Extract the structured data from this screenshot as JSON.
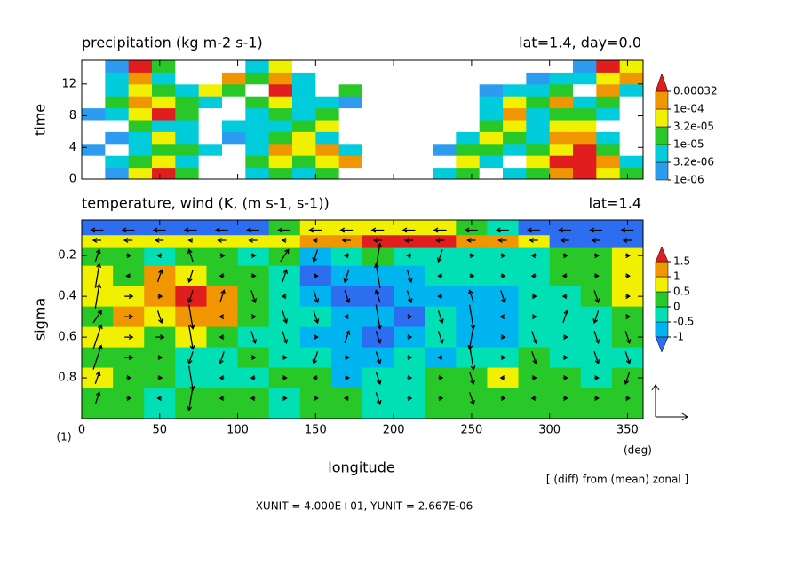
{
  "chart_data": [
    {
      "type": "contour",
      "title": "precipitation (kg m-2 s-1)",
      "subtitle": "lat=1.4, day=0.0",
      "ylabel": "time",
      "xlim": [
        0,
        360
      ],
      "xticks": [
        0,
        50,
        100,
        150,
        200,
        250,
        300,
        350
      ],
      "ylim": [
        0,
        15
      ],
      "yticks": [
        0,
        4,
        8,
        12
      ],
      "x": [
        7.5,
        22.5,
        37.5,
        52.5,
        67.5,
        82.5,
        97.5,
        112.5,
        127.5,
        142.5,
        157.5,
        172.5,
        187.5,
        202.5,
        217.5,
        232.5,
        247.5,
        262.5,
        277.5,
        292.5,
        307.5,
        322.5,
        337.5,
        352.5
      ],
      "y": [
        0.75,
        2.25,
        3.75,
        5.25,
        6.75,
        8.25,
        9.75,
        11.25,
        12.75,
        14.25
      ],
      "z": [
        [
          0,
          2e-06,
          5e-05,
          0.0005,
          2e-05,
          0,
          0,
          5e-06,
          2e-05,
          5e-06,
          2e-05,
          0,
          0,
          0,
          0,
          5e-06,
          2e-05,
          0,
          5e-06,
          2e-05,
          0.0002,
          0.0005,
          5e-05,
          2e-05
        ],
        [
          0,
          5e-06,
          2e-05,
          5e-05,
          5e-06,
          0,
          0,
          2e-05,
          5e-05,
          2e-05,
          5e-05,
          0.0002,
          0,
          0,
          0,
          0,
          5e-05,
          5e-06,
          0,
          5e-05,
          0.0005,
          0.0005,
          0.0002,
          5e-06
        ],
        [
          2e-06,
          0,
          5e-06,
          2e-05,
          2e-05,
          5e-06,
          0,
          5e-06,
          0.0002,
          5e-05,
          0.0002,
          5e-06,
          0,
          0,
          0,
          2e-06,
          2e-05,
          2e-05,
          5e-06,
          2e-05,
          5e-05,
          0.0005,
          2e-05,
          0
        ],
        [
          0,
          2e-06,
          5e-06,
          5e-05,
          5e-06,
          0,
          2e-06,
          5e-06,
          2e-05,
          5e-05,
          5e-06,
          0,
          0,
          0,
          0,
          0,
          5e-06,
          5e-05,
          2e-05,
          5e-06,
          0.0002,
          0.0002,
          5e-06,
          0
        ],
        [
          0,
          0,
          2e-05,
          5e-06,
          5e-06,
          0,
          5e-06,
          5e-06,
          5e-06,
          2e-05,
          5e-05,
          0,
          0,
          0,
          0,
          0,
          0,
          2e-05,
          5e-05,
          5e-06,
          5e-05,
          5e-05,
          0,
          0
        ],
        [
          2e-06,
          5e-06,
          5e-05,
          0.0005,
          2e-05,
          0,
          0,
          5e-06,
          2e-05,
          5e-06,
          2e-05,
          0,
          0,
          0,
          0,
          0,
          0,
          5e-06,
          0.0002,
          5e-06,
          2e-05,
          2e-05,
          5e-06,
          0
        ],
        [
          0,
          2e-05,
          0.0002,
          5e-05,
          2e-05,
          5e-06,
          0,
          2e-05,
          5e-05,
          5e-06,
          5e-06,
          2e-06,
          0,
          0,
          0,
          0,
          0,
          5e-06,
          5e-05,
          2e-05,
          0.0002,
          5e-06,
          2e-05,
          0
        ],
        [
          0,
          5e-06,
          5e-05,
          2e-05,
          5e-06,
          5e-05,
          2e-05,
          0,
          0.0005,
          5e-06,
          0,
          2e-05,
          0,
          0,
          0,
          0,
          0,
          2e-06,
          5e-06,
          5e-06,
          2e-05,
          0,
          0.0002,
          5e-06
        ],
        [
          0,
          5e-06,
          0.0002,
          5e-06,
          0,
          0,
          0.0002,
          2e-05,
          0.0002,
          5e-06,
          0,
          0,
          0,
          0,
          0,
          0,
          0,
          0,
          0,
          2e-06,
          5e-06,
          5e-06,
          5e-05,
          0.0002
        ],
        [
          0,
          2e-06,
          0.0005,
          2e-05,
          0,
          0,
          0,
          5e-06,
          5e-05,
          0,
          0,
          0,
          0,
          0,
          0,
          0,
          0,
          0,
          0,
          0,
          0,
          2e-06,
          0.0005,
          5e-05
        ]
      ],
      "colorbar_ticks": [
        {
          "value": 1e-06,
          "label": "1e-06"
        },
        {
          "value": 3.2e-06,
          "label": "3.2e-06"
        },
        {
          "value": 1e-05,
          "label": "1e-05"
        },
        {
          "value": 3.2e-05,
          "label": "3.2e-05"
        },
        {
          "value": 0.0001,
          "label": "1e-04"
        },
        {
          "value": 0.00032,
          "label": "0.00032"
        }
      ],
      "colors": [
        "#ffffff",
        "#2d9bf0",
        "#00ccdc",
        "#28c828",
        "#f0f000",
        "#f09600",
        "#e01e1e"
      ],
      "extend": "max"
    },
    {
      "type": "contour-vector",
      "title": "temperature, wind (K, (m s-1, s-1))",
      "subtitle": "lat=1.4",
      "ylabel": "sigma",
      "xlabel": "longitude",
      "x_unit_label": "(deg)",
      "panel_label": "(1)",
      "note": "[ (diff) from (mean) zonal ]",
      "vector_note": "XUNIT = 4.000E+01, YUNIT = 2.667E-06",
      "xunit": 40,
      "yunit": 2.667e-06,
      "xlim": [
        0,
        360
      ],
      "xticks": [
        0,
        50,
        100,
        150,
        200,
        250,
        300,
        350
      ],
      "ylim": [
        1,
        0.025
      ],
      "yticks": [
        0.2,
        0.4,
        0.6,
        0.8
      ],
      "x": [
        10,
        30,
        50,
        70,
        90,
        110,
        130,
        150,
        170,
        190,
        210,
        230,
        250,
        270,
        290,
        310,
        330,
        350
      ],
      "y": [
        0.075,
        0.125,
        0.2,
        0.3,
        0.4,
        0.5,
        0.6,
        0.7,
        0.8,
        0.9
      ],
      "z": [
        [
          -1.2,
          -1.2,
          -1.2,
          -1.2,
          -1.2,
          -1.2,
          0.3,
          0.7,
          0.7,
          0.7,
          0.7,
          0.7,
          0.3,
          -0.3,
          -1.2,
          -1.2,
          -1.2,
          -1.2
        ],
        [
          0.7,
          0.7,
          0.7,
          0.7,
          0.7,
          0.7,
          0.7,
          1.2,
          1.2,
          1.7,
          1.7,
          1.7,
          1.2,
          1.2,
          0.7,
          -1.2,
          -1.2,
          -1.2
        ],
        [
          0.3,
          0.3,
          -0.3,
          0.3,
          0.3,
          -0.3,
          0.3,
          -0.7,
          -0.3,
          0.3,
          -0.3,
          -0.3,
          -0.3,
          -0.3,
          -0.3,
          0.3,
          0.3,
          0.7
        ],
        [
          0.7,
          0.3,
          1.2,
          0.7,
          0.3,
          0.3,
          -0.3,
          -1.2,
          -0.7,
          -0.7,
          -0.7,
          -0.3,
          -0.3,
          -0.3,
          -0.3,
          0.3,
          0.3,
          0.7
        ],
        [
          0.7,
          0.7,
          1.2,
          1.7,
          1.2,
          0.3,
          -0.3,
          -0.7,
          -1.2,
          -1.2,
          -0.7,
          -0.7,
          -0.7,
          -0.7,
          -0.3,
          -0.3,
          0.3,
          0.7
        ],
        [
          0.3,
          1.2,
          0.7,
          1.2,
          1.2,
          0.3,
          -0.3,
          -0.3,
          -0.7,
          -0.7,
          -1.2,
          -0.3,
          -0.7,
          -0.7,
          -0.3,
          -0.3,
          -0.3,
          0.3
        ],
        [
          0.7,
          0.7,
          0.3,
          0.7,
          0.3,
          -0.3,
          -0.3,
          -0.7,
          -0.7,
          -1.2,
          -0.7,
          -0.3,
          -0.7,
          -0.7,
          -0.3,
          -0.3,
          -0.3,
          0.3
        ],
        [
          0.3,
          0.3,
          0.3,
          -0.3,
          -0.3,
          0.3,
          -0.3,
          -0.3,
          -0.7,
          -0.7,
          -0.3,
          -0.7,
          -0.3,
          -0.3,
          0.3,
          -0.3,
          -0.3,
          -0.3
        ],
        [
          0.7,
          0.3,
          0.3,
          -0.3,
          -0.3,
          -0.3,
          0.3,
          0.3,
          -0.7,
          -0.3,
          -0.3,
          0.3,
          0.3,
          0.7,
          0.3,
          0.3,
          -0.3,
          0.3
        ],
        [
          0.3,
          0.3,
          -0.3,
          0.3,
          0.3,
          0.3,
          -0.3,
          0.3,
          0.3,
          -0.3,
          -0.3,
          0.3,
          0.3,
          0.3,
          0.3,
          0.3,
          0.3,
          0.3
        ]
      ],
      "u": [
        [
          -15,
          -15,
          -15,
          -15,
          -15,
          -15,
          -15,
          -15,
          -15,
          -15,
          -15,
          -15,
          -15,
          -15,
          -15,
          -15,
          -15,
          -15
        ],
        [
          -10,
          -10,
          -10,
          -5,
          -10,
          -10,
          -5,
          -5,
          -10,
          -10,
          -10,
          -10,
          -10,
          -10,
          -10,
          -10,
          -10,
          -10
        ],
        [
          5,
          5,
          -5,
          -5,
          5,
          5,
          10,
          -5,
          -5,
          5,
          -5,
          -5,
          5,
          5,
          -5,
          5,
          5,
          5
        ],
        [
          5,
          -5,
          5,
          -5,
          -5,
          5,
          5,
          5,
          -5,
          -5,
          5,
          -5,
          5,
          5,
          -5,
          -5,
          5,
          5
        ],
        [
          5,
          10,
          5,
          -5,
          5,
          5,
          -5,
          5,
          5,
          -5,
          5,
          -5,
          -5,
          5,
          5,
          -5,
          5,
          5
        ],
        [
          10,
          10,
          5,
          5,
          -5,
          5,
          5,
          5,
          -5,
          5,
          5,
          5,
          5,
          -5,
          5,
          5,
          -5,
          5
        ],
        [
          10,
          10,
          10,
          5,
          -5,
          5,
          5,
          5,
          5,
          5,
          5,
          5,
          -5,
          5,
          5,
          5,
          5,
          5
        ],
        [
          10,
          10,
          5,
          -5,
          -5,
          5,
          5,
          -5,
          5,
          5,
          5,
          -5,
          5,
          5,
          5,
          5,
          5,
          5
        ],
        [
          5,
          5,
          5,
          5,
          -5,
          -5,
          5,
          -5,
          5,
          5,
          5,
          5,
          5,
          -5,
          5,
          5,
          5,
          -5
        ],
        [
          5,
          5,
          -5,
          -5,
          -5,
          -5,
          5,
          5,
          -5,
          5,
          5,
          5,
          5,
          5,
          -5,
          5,
          5,
          5
        ]
      ],
      "w": [
        [
          0,
          0,
          0,
          0,
          0,
          0,
          0,
          0,
          0,
          0,
          0,
          0,
          0,
          0,
          0,
          0,
          0,
          0
        ],
        [
          0,
          0,
          0,
          0,
          0,
          0,
          0,
          0,
          0,
          0,
          0,
          0,
          0,
          0,
          0,
          0,
          0,
          0
        ],
        [
          1e-06,
          0,
          0,
          1e-06,
          0,
          0,
          1e-06,
          -1e-06,
          0,
          2e-06,
          0,
          -1e-06,
          0,
          0,
          0,
          0,
          0,
          0
        ],
        [
          2e-06,
          0,
          1e-06,
          -1e-06,
          0,
          0,
          1e-06,
          0,
          -1e-06,
          2e-06,
          -1e-06,
          0,
          0,
          0,
          0,
          0,
          0,
          0
        ],
        [
          2e-06,
          0,
          0,
          -1e-06,
          1e-06,
          -1e-06,
          0,
          -1e-06,
          -1e-06,
          1e-06,
          -1e-06,
          0,
          1e-06,
          -1e-06,
          0,
          0,
          -1e-06,
          0
        ],
        [
          1e-06,
          0,
          -1e-06,
          -2e-06,
          0,
          0,
          -1e-06,
          -1e-06,
          0,
          -2e-06,
          0,
          -1e-06,
          -2e-06,
          0,
          0,
          1e-06,
          -1e-06,
          0
        ],
        [
          2e-06,
          0,
          0,
          -2e-06,
          0,
          -1e-06,
          -1e-06,
          0,
          1e-06,
          -1e-06,
          0,
          -1e-06,
          -2e-06,
          0,
          -1e-06,
          0,
          -1e-06,
          -1e-06
        ],
        [
          2e-06,
          0,
          0,
          -1e-06,
          -1e-06,
          0,
          0,
          -1e-06,
          0,
          -1e-06,
          0,
          0,
          -2e-06,
          0,
          -1e-06,
          0,
          -1e-06,
          -1e-06
        ],
        [
          1e-06,
          0,
          0,
          -2e-06,
          0,
          0,
          0,
          0,
          0,
          -1e-06,
          0,
          0,
          -1e-06,
          0,
          0,
          0,
          0,
          -1e-06
        ],
        [
          1e-06,
          0,
          0,
          -2e-06,
          0,
          0,
          0,
          0,
          0,
          -1e-06,
          0,
          0,
          -1e-06,
          0,
          0,
          0,
          0,
          0
        ]
      ],
      "colorbar_ticks": [
        -1,
        -0.5,
        0,
        0.5,
        1,
        1.5
      ],
      "colors": [
        "#2d6ef0",
        "#00b4f0",
        "#00e0b4",
        "#28c828",
        "#f0f000",
        "#f09600",
        "#e01e1e"
      ],
      "extend": "both"
    }
  ]
}
